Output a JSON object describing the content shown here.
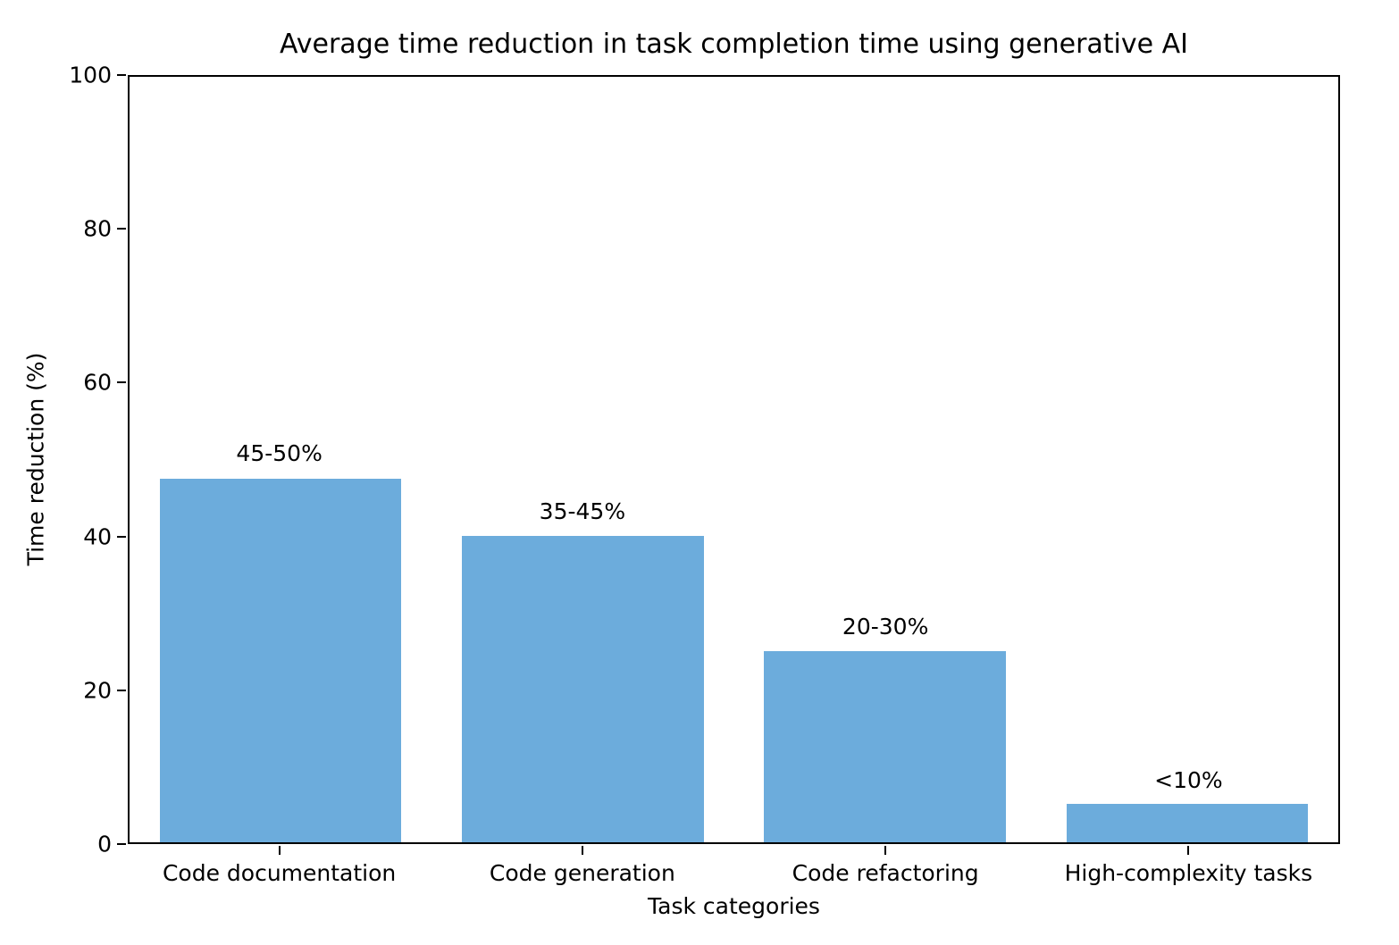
{
  "figure": {
    "background_color": "#ffffff",
    "spine_color": "#000000",
    "text_color": "#000000"
  },
  "chart_data": {
    "type": "bar",
    "title": "Average time reduction in task completion time using generative AI",
    "xlabel": "Task categories",
    "ylabel": "Time reduction (%)",
    "categories": [
      "Code documentation",
      "Code generation",
      "Code refactoring",
      "High-complexity tasks"
    ],
    "values": [
      47.5,
      40,
      25,
      5
    ],
    "bar_labels": [
      "45-50%",
      "35-45%",
      "20-30%",
      "<10%"
    ],
    "bar_color": "#6cacdc",
    "ylim": [
      0,
      100
    ],
    "yticks": [
      0,
      20,
      40,
      60,
      80,
      100
    ],
    "bar_width_fraction": 0.8,
    "grid": false,
    "legend": "none"
  }
}
